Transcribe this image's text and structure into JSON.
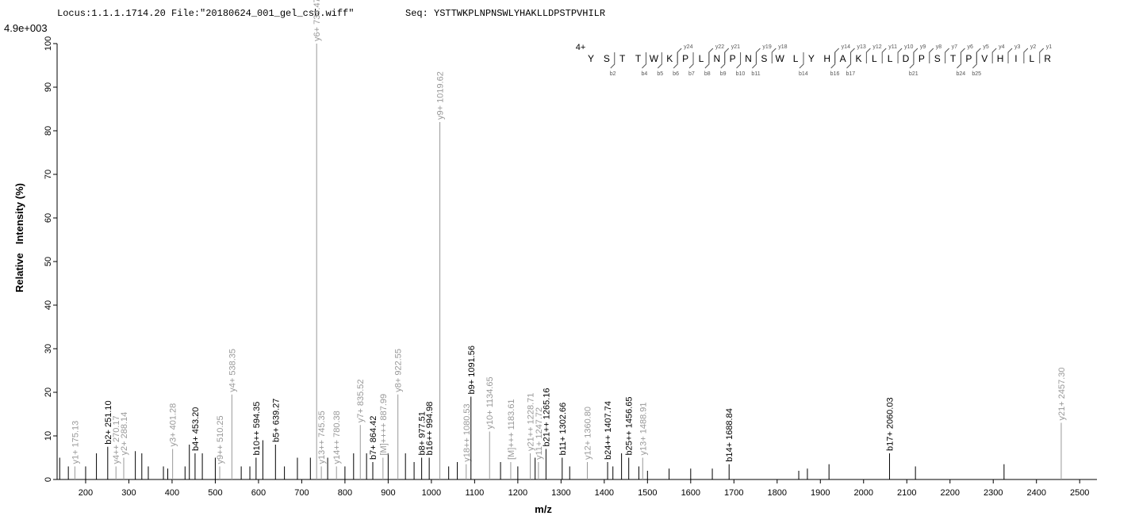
{
  "header": {
    "locus": "Locus:1.1.1.1714.20 File:\"20180624_001_gel_csb.wiff\"",
    "seq": "Seq: YSTTWKPLNPNSWLYHAKLLDPSTPVHILR"
  },
  "chart_data": {
    "type": "spectrum",
    "scale_label": "4.9e+003",
    "x_label": "m/z",
    "y_label": "Relative   Intensity (%)",
    "xlim": [
      134,
      2540
    ],
    "ylim": [
      0,
      100
    ],
    "xticks": [
      200,
      300,
      400,
      500,
      600,
      700,
      800,
      900,
      1000,
      1100,
      1200,
      1300,
      1400,
      1500,
      1600,
      1700,
      1800,
      1900,
      2000,
      2100,
      2200,
      2300,
      2400,
      2500
    ],
    "yticks": [
      0,
      10,
      20,
      30,
      40,
      50,
      60,
      70,
      80,
      90,
      100
    ],
    "labeled_peaks": {
      "x": [
        175.13,
        251.1,
        270.17,
        288.14,
        401.28,
        453.2,
        510.25,
        538.35,
        594.35,
        639.27,
        734.47,
        745.35,
        780.38,
        835.52,
        864.42,
        887.99,
        922.55,
        977.51,
        994.98,
        1019.62,
        1080.53,
        1091.56,
        1134.65,
        1183.61,
        1228.71,
        1247.72,
        1265.16,
        1302.66,
        1360.8,
        1407.74,
        1456.65,
        1488.91,
        1688.84,
        2060.03,
        2457.3
      ],
      "values": [
        3,
        7.5,
        3,
        5,
        7,
        6,
        3,
        19.5,
        5,
        8,
        100,
        3,
        3,
        12.5,
        4,
        5,
        19.5,
        5,
        5,
        82,
        3.5,
        19,
        11,
        4,
        6,
        4,
        7,
        5,
        4,
        4,
        5,
        5,
        3.5,
        6,
        13
      ],
      "labels": [
        "y1+ 175.13",
        "b2+ 251.10",
        "y4++ 270.17",
        "y2+ 288.14",
        "y3+ 401.28",
        "b4+ 453.20",
        "y9++ 510.25",
        "y4+ 538.35",
        "b10++ 594.35",
        "b5+ 639.27",
        "y6+ 734.47",
        "y13++ 745.35",
        "y14++ 780.38",
        "y7+ 835.52",
        "b7+ 864.42",
        "[M]++++ 887.99",
        "y8+ 922.55",
        "b8+ 977.51",
        "b16++ 994.98",
        "y9+ 1019.62",
        "y18++ 1080.53",
        "b9+ 1091.56",
        "y10+ 1134.65",
        "[M]+++ 1183.61",
        "y21++ 1228.71",
        "y11+ 1247.72",
        "b21++ 1265.16",
        "b11+ 1302.66",
        "y12+ 1360.80",
        "b24++ 1407.74",
        "b25++ 1456.65",
        "y13+ 1488.91",
        "b14+ 1688.84",
        "b17+ 2060.03",
        "y21+ 2457.30"
      ],
      "colors": [
        "#999999",
        "#000000",
        "#999999",
        "#999999",
        "#999999",
        "#000000",
        "#999999",
        "#999999",
        "#000000",
        "#000000",
        "#999999",
        "#999999",
        "#999999",
        "#999999",
        "#000000",
        "#999999",
        "#999999",
        "#000000",
        "#000000",
        "#999999",
        "#999999",
        "#000000",
        "#999999",
        "#999999",
        "#999999",
        "#999999",
        "#000000",
        "#000000",
        "#999999",
        "#000000",
        "#000000",
        "#999999",
        "#000000",
        "#000000",
        "#999999"
      ]
    },
    "other_peaks": {
      "color": "#000000",
      "x": [
        140,
        160,
        200,
        225,
        315,
        330,
        345,
        380,
        390,
        430,
        440,
        470,
        500,
        560,
        580,
        610,
        660,
        690,
        720,
        760,
        800,
        820,
        850,
        900,
        940,
        960,
        1040,
        1060,
        1160,
        1200,
        1240,
        1320,
        1420,
        1440,
        1480,
        1500,
        1550,
        1600,
        1650,
        1850,
        1870,
        1920,
        2120,
        2325
      ],
      "values": [
        5,
        3,
        3,
        6,
        6.5,
        6,
        3,
        3,
        2.5,
        3,
        8,
        6,
        5,
        3,
        3,
        9,
        3,
        5,
        5,
        5,
        3,
        6,
        6,
        6,
        6,
        4,
        3,
        4,
        4,
        3,
        5,
        3,
        3,
        6,
        3,
        2,
        2.5,
        2.5,
        2.5,
        2,
        2.5,
        3.5,
        3,
        3.5
      ]
    },
    "sequence": {
      "charge": "4+",
      "residues": [
        "Y",
        "S",
        "T",
        "T",
        "W",
        "K",
        "P",
        "L",
        "N",
        "P",
        "N",
        "S",
        "W",
        "L",
        "Y",
        "H",
        "A",
        "K",
        "L",
        "L",
        "D",
        "P",
        "S",
        "T",
        "P",
        "V",
        "H",
        "I",
        "L",
        "R"
      ],
      "y_ions": [
        24,
        22,
        21,
        19,
        18,
        14,
        13,
        12,
        11,
        10,
        9,
        8,
        7,
        6,
        5,
        4,
        3,
        2,
        1
      ],
      "y_labels": [
        "y24",
        "y22",
        "y21",
        "y19",
        "y18",
        "y14",
        "y13",
        "y12",
        "y11",
        "y10",
        "y9",
        "y8",
        "y7",
        "y6",
        "y5",
        "y4",
        "y3",
        "y2",
        "y1"
      ],
      "b_ions": [
        2,
        4,
        5,
        6,
        7,
        8,
        9,
        10,
        11,
        14,
        16,
        17,
        21,
        24,
        25
      ],
      "b_labels": [
        "b2",
        "b4",
        "b5",
        "b6",
        "b7",
        "b8",
        "b9",
        "b10",
        "b11",
        "b14",
        "b16",
        "b17",
        "b21",
        "b24",
        "b25"
      ]
    }
  }
}
